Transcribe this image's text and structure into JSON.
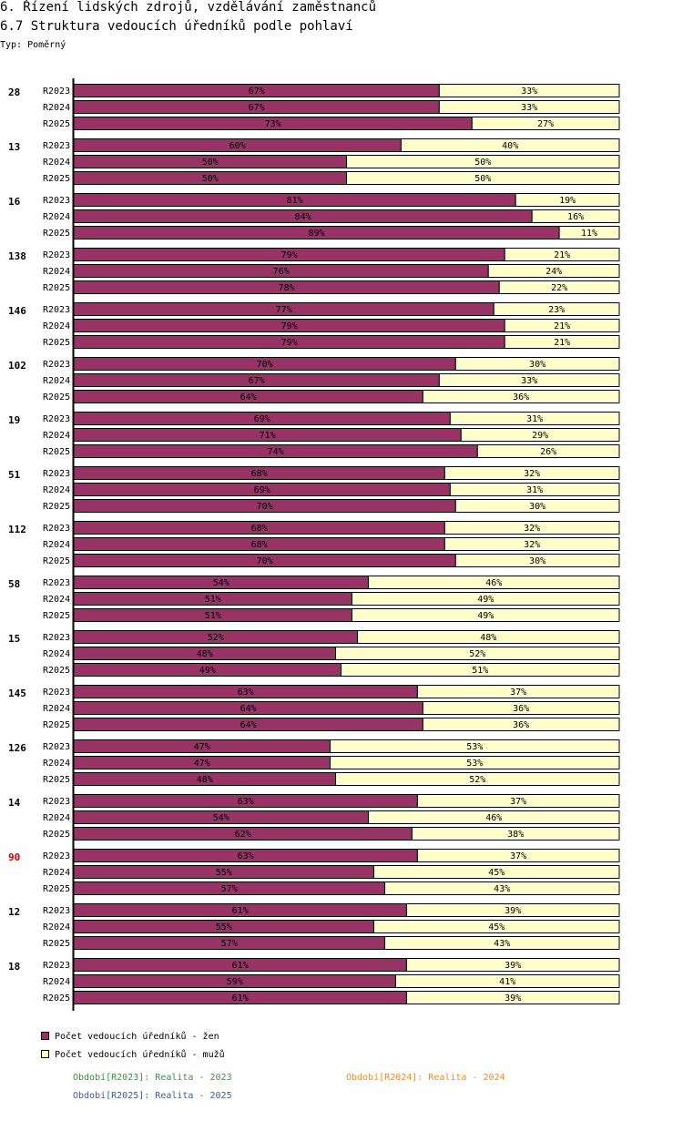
{
  "header": {
    "title": "6. Řízení lidských zdrojů, vzdělávání zaměstnanců",
    "subtitle": "6.7 Struktura vedoucích úředníků podle pohlaví",
    "type_label": "Typ: Poměrný"
  },
  "colors": {
    "women": "#993366",
    "men": "#ffffcc",
    "highlight_group": "#cc0000",
    "period_2023": "#339933",
    "period_2024": "#ff8800",
    "period_2025": "#336699"
  },
  "chart_data": {
    "type": "bar",
    "orientation": "horizontal",
    "stacked": true,
    "normalized": true,
    "unit": "%",
    "series_names": [
      "Počet vedoucích úředníků - žen",
      "Počet vedoucích úředníků - mužů"
    ],
    "periods": [
      "R2023",
      "R2024",
      "R2025"
    ],
    "groups": [
      {
        "label": "28",
        "highlight": false,
        "women": [
          67,
          67,
          73
        ],
        "men": [
          33,
          33,
          27
        ]
      },
      {
        "label": "13",
        "highlight": false,
        "women": [
          60,
          50,
          50
        ],
        "men": [
          40,
          50,
          50
        ]
      },
      {
        "label": "16",
        "highlight": false,
        "women": [
          81,
          84,
          89
        ],
        "men": [
          19,
          16,
          11
        ]
      },
      {
        "label": "138",
        "highlight": false,
        "women": [
          79,
          76,
          78
        ],
        "men": [
          21,
          24,
          22
        ]
      },
      {
        "label": "146",
        "highlight": false,
        "women": [
          77,
          79,
          79
        ],
        "men": [
          23,
          21,
          21
        ]
      },
      {
        "label": "102",
        "highlight": false,
        "women": [
          70,
          67,
          64
        ],
        "men": [
          30,
          33,
          36
        ]
      },
      {
        "label": "19",
        "highlight": false,
        "women": [
          69,
          71,
          74
        ],
        "men": [
          31,
          29,
          26
        ]
      },
      {
        "label": "51",
        "highlight": false,
        "women": [
          68,
          69,
          70
        ],
        "men": [
          32,
          31,
          30
        ]
      },
      {
        "label": "112",
        "highlight": false,
        "women": [
          68,
          68,
          70
        ],
        "men": [
          32,
          32,
          30
        ]
      },
      {
        "label": "58",
        "highlight": false,
        "women": [
          54,
          51,
          51
        ],
        "men": [
          46,
          49,
          49
        ]
      },
      {
        "label": "15",
        "highlight": false,
        "women": [
          52,
          48,
          49
        ],
        "men": [
          48,
          52,
          51
        ]
      },
      {
        "label": "145",
        "highlight": false,
        "women": [
          63,
          64,
          64
        ],
        "men": [
          37,
          36,
          36
        ]
      },
      {
        "label": "126",
        "highlight": false,
        "women": [
          47,
          47,
          48
        ],
        "men": [
          53,
          53,
          52
        ]
      },
      {
        "label": "14",
        "highlight": false,
        "women": [
          63,
          54,
          62
        ],
        "men": [
          37,
          46,
          38
        ]
      },
      {
        "label": "90",
        "highlight": true,
        "women": [
          63,
          55,
          57
        ],
        "men": [
          37,
          45,
          43
        ]
      },
      {
        "label": "12",
        "highlight": false,
        "women": [
          61,
          55,
          57
        ],
        "men": [
          39,
          45,
          43
        ]
      },
      {
        "label": "18",
        "highlight": false,
        "women": [
          61,
          59,
          61
        ],
        "men": [
          39,
          41,
          39
        ]
      }
    ]
  },
  "legend": {
    "women_label": "Počet vedoucích úředníků - žen",
    "men_label": "Počet vedoucích úředníků - mužů",
    "period_2023": "Období[R2023]: Realita - 2023",
    "period_2024": "Období[R2024]: Realita - 2024",
    "period_2025": "Období[R2025]: Realita - 2025"
  }
}
